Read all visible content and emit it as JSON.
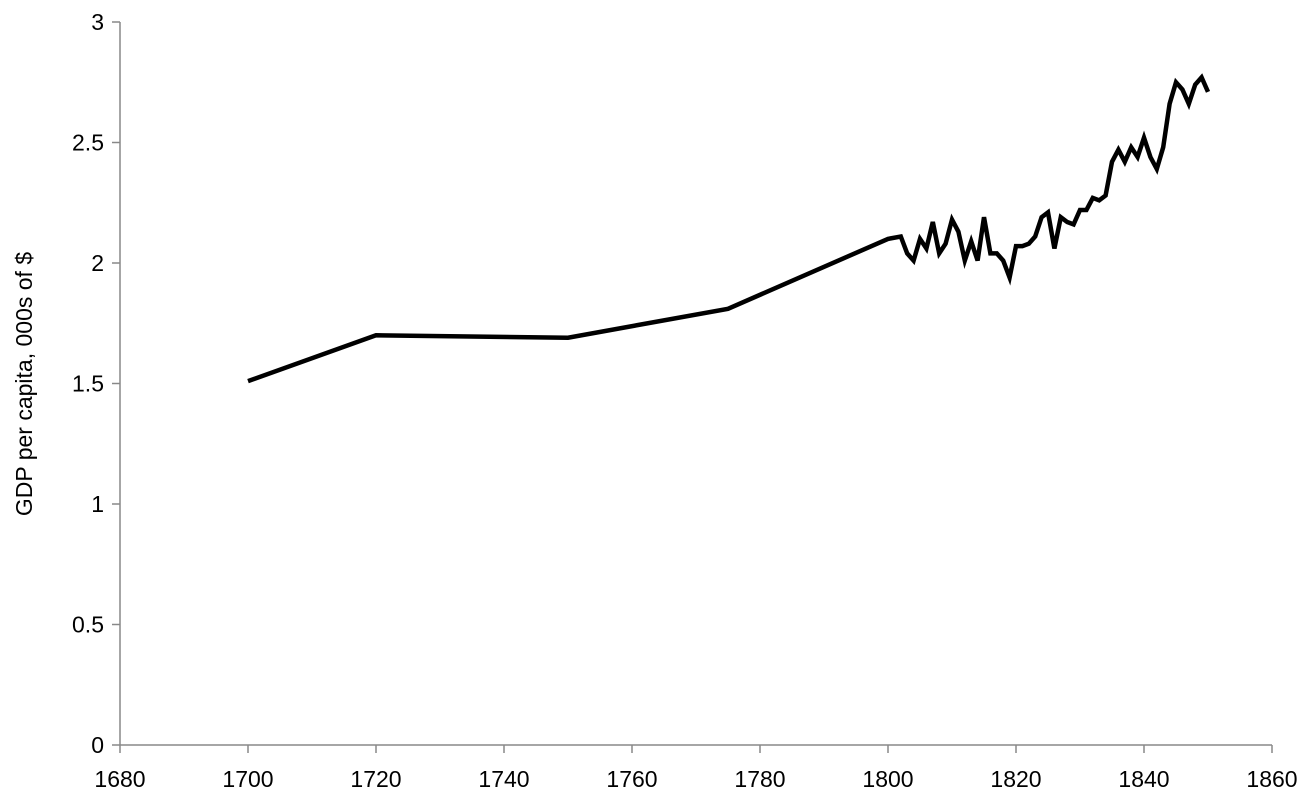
{
  "chart_data": {
    "type": "line",
    "title": "",
    "xlabel": "",
    "ylabel": "GDP per capita, 000s of $",
    "xlim": [
      1680,
      1860
    ],
    "ylim": [
      0,
      3
    ],
    "xticks": [
      1680,
      1700,
      1720,
      1740,
      1760,
      1780,
      1800,
      1820,
      1840,
      1860
    ],
    "yticks": [
      0,
      0.5,
      1,
      1.5,
      2,
      2.5,
      3
    ],
    "grid": false,
    "legend": "none",
    "line_color": "#000000",
    "series": [
      {
        "x": [
          1700,
          1720,
          1750,
          1775,
          1800,
          1802,
          1803,
          1804,
          1805,
          1806,
          1807,
          1808,
          1809,
          1810,
          1811,
          1812,
          1813,
          1814,
          1815,
          1816,
          1817,
          1818,
          1819,
          1820,
          1821,
          1822,
          1823,
          1824,
          1825,
          1826,
          1827,
          1828,
          1829,
          1830,
          1831,
          1832,
          1833,
          1834,
          1835,
          1836,
          1837,
          1838,
          1839,
          1840,
          1841,
          1842,
          1843,
          1844,
          1845,
          1846,
          1847,
          1848,
          1849,
          1850
        ],
        "values": [
          1.51,
          1.7,
          1.69,
          1.81,
          2.1,
          2.11,
          2.04,
          2.01,
          2.1,
          2.06,
          2.17,
          2.04,
          2.08,
          2.18,
          2.13,
          2.01,
          2.09,
          2.01,
          2.19,
          2.04,
          2.04,
          2.01,
          1.94,
          2.07,
          2.07,
          2.08,
          2.11,
          2.19,
          2.21,
          2.06,
          2.19,
          2.17,
          2.16,
          2.22,
          2.22,
          2.27,
          2.26,
          2.28,
          2.42,
          2.47,
          2.42,
          2.48,
          2.44,
          2.52,
          2.44,
          2.39,
          2.48,
          2.66,
          2.75,
          2.72,
          2.66,
          2.74,
          2.77,
          2.71
        ]
      }
    ]
  }
}
